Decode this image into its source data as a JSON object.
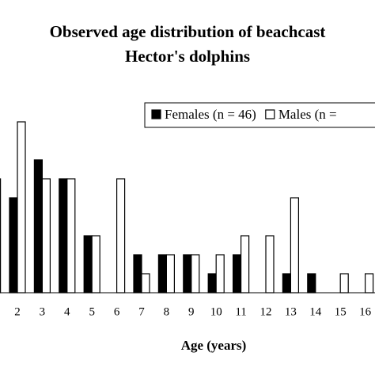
{
  "chart_data": {
    "type": "bar",
    "title": [
      "Observed age distribution of beachcast",
      "Hector's dolphins"
    ],
    "x_label": "Age (years)",
    "categories": [
      null,
      "2",
      "3",
      "4",
      "5",
      "6",
      "7",
      "8",
      "9",
      "10",
      "11",
      "12",
      "13",
      "14",
      "15",
      "16"
    ],
    "series": [
      {
        "name": "Females (n = 46)",
        "color": "#000000",
        "values": [
          null,
          5,
          7,
          6,
          3,
          0,
          2,
          2,
          2,
          1,
          2,
          0,
          1,
          1,
          0,
          0
        ]
      },
      {
        "name": "Males (n =",
        "color": "#ffffff",
        "values": [
          6,
          9,
          6,
          6,
          3,
          6,
          1,
          2,
          2,
          2,
          3,
          3,
          5,
          0,
          1,
          1
        ]
      }
    ]
  }
}
